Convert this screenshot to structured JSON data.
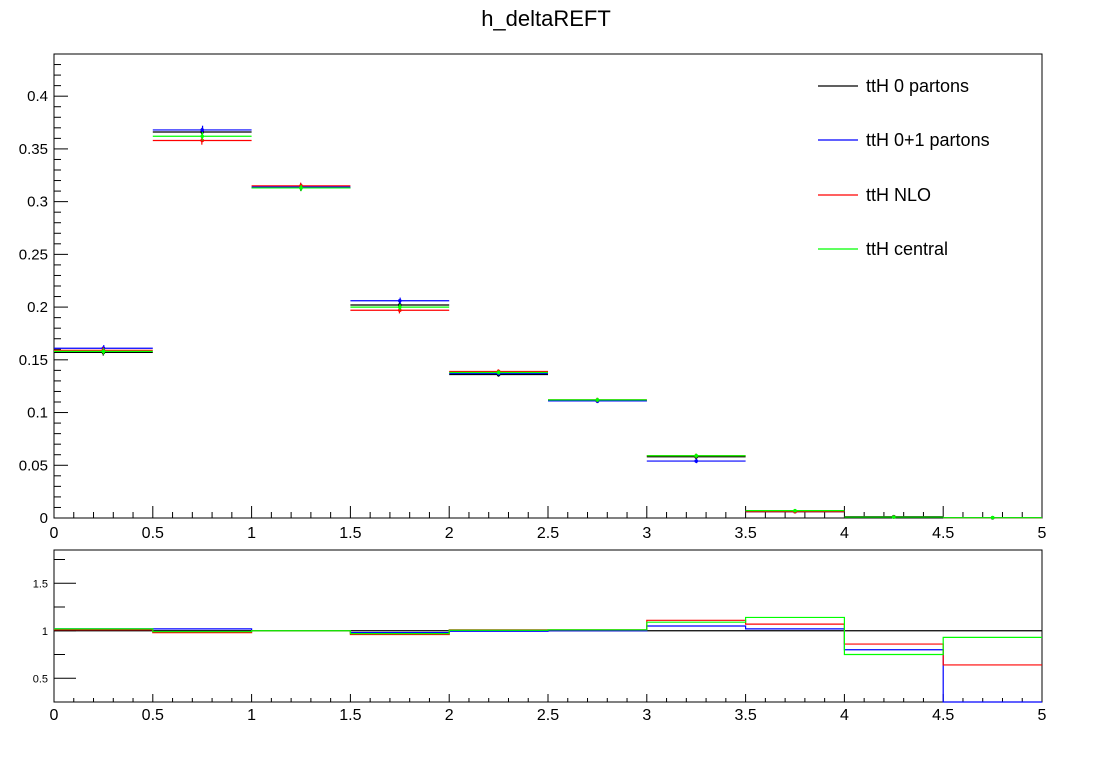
{
  "chart_data": [
    {
      "type": "histogram",
      "title": "h_deltaREFT",
      "xlabel": "",
      "ylabel": "",
      "xlim": [
        0,
        5
      ],
      "ylim": [
        0,
        0.44
      ],
      "bin_edges": [
        0,
        0.5,
        1,
        1.5,
        2,
        2.5,
        3,
        3.5,
        4,
        4.5,
        5
      ],
      "x_tick_labels": [
        "0",
        "0.5",
        "1",
        "1.5",
        "2",
        "2.5",
        "3",
        "3.5",
        "4",
        "4.5",
        "5"
      ],
      "y_tick_labels": [
        "0",
        "0.05",
        "0.1",
        "0.15",
        "0.2",
        "0.25",
        "0.3",
        "0.35",
        "0.4"
      ],
      "y_ticks": [
        0,
        0.05,
        0.1,
        0.15,
        0.2,
        0.25,
        0.3,
        0.35,
        0.4
      ],
      "legend_position": "top-right",
      "series": [
        {
          "name": "ttH 0 partons",
          "color": "#000000",
          "values": [
            0.157,
            0.366,
            0.313,
            0.202,
            0.136,
            0.111,
            0.058,
            0.006,
            0.0012,
            0.0003
          ],
          "errors": [
            0.003,
            0.004,
            0.003,
            0.003,
            0.002,
            0.002,
            0.002,
            0.0005,
            0.0002,
            0.0001
          ]
        },
        {
          "name": "ttH 0+1 partons",
          "color": "#0000ff",
          "values": [
            0.161,
            0.368,
            0.314,
            0.206,
            0.137,
            0.111,
            0.054,
            0.006,
            0.001,
            0.0001
          ],
          "errors": [
            0.003,
            0.004,
            0.003,
            0.003,
            0.002,
            0.002,
            0.002,
            0.0005,
            0.0002,
            0.0001
          ]
        },
        {
          "name": "ttH NLO",
          "color": "#ff0000",
          "values": [
            0.159,
            0.358,
            0.315,
            0.197,
            0.139,
            0.112,
            0.059,
            0.006,
            0.001,
            0.0002
          ],
          "errors": [
            0.003,
            0.004,
            0.003,
            0.003,
            0.002,
            0.002,
            0.002,
            0.0005,
            0.0002,
            0.0001
          ]
        },
        {
          "name": "ttH central",
          "color": "#00ff00",
          "values": [
            0.158,
            0.362,
            0.313,
            0.2,
            0.138,
            0.112,
            0.059,
            0.007,
            0.0009,
            0.0003
          ],
          "errors": [
            0.003,
            0.004,
            0.003,
            0.003,
            0.002,
            0.002,
            0.002,
            0.0005,
            0.0002,
            0.0001
          ]
        }
      ]
    },
    {
      "type": "ratio",
      "xlim": [
        0,
        5
      ],
      "ylim": [
        0.25,
        1.85
      ],
      "bin_edges": [
        0,
        0.5,
        1,
        1.5,
        2,
        2.5,
        3,
        3.5,
        4,
        4.5,
        5
      ],
      "x_tick_labels": [
        "0",
        "0.5",
        "1",
        "1.5",
        "2",
        "2.5",
        "3",
        "3.5",
        "4",
        "4.5",
        "5"
      ],
      "y_tick_labels": [
        "0.5",
        "1",
        "1.5"
      ],
      "y_ticks": [
        0.5,
        1,
        1.5
      ],
      "series": [
        {
          "name": "ttH 0 partons",
          "color": "#000000",
          "values": [
            1,
            1,
            1,
            1,
            1,
            1,
            1,
            1,
            1,
            1
          ]
        },
        {
          "name": "ttH 0+1 partons",
          "color": "#0000ff",
          "values": [
            1.02,
            1.02,
            1.0,
            0.98,
            0.995,
            1.0,
            1.05,
            1.02,
            0.8,
            0.25
          ]
        },
        {
          "name": "ttH NLO",
          "color": "#ff0000",
          "values": [
            1.01,
            0.98,
            1.0,
            0.96,
            1.01,
            1.01,
            1.11,
            1.07,
            0.86,
            0.64
          ]
        },
        {
          "name": "ttH central",
          "color": "#00ff00",
          "values": [
            1.02,
            0.99,
            1.0,
            0.97,
            1.005,
            1.01,
            1.09,
            1.14,
            0.75,
            0.93
          ]
        }
      ]
    }
  ]
}
